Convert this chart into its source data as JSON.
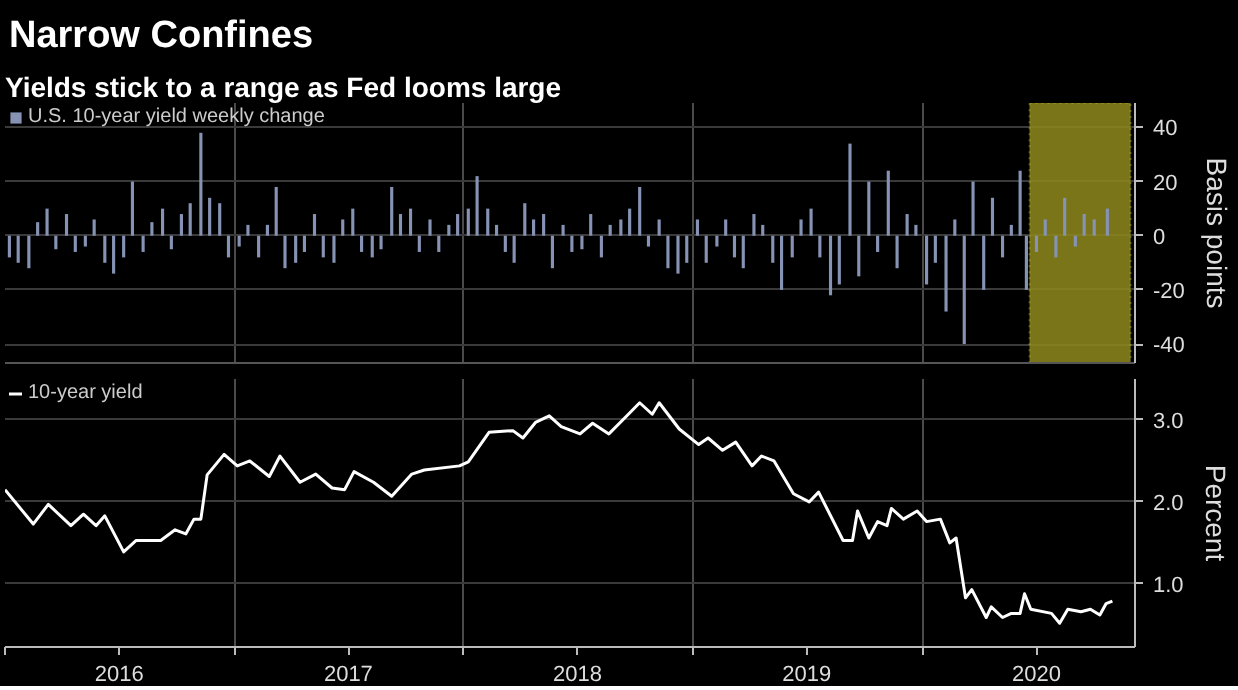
{
  "chart_data": [
    {
      "type": "bar",
      "title": "Narrow Confines",
      "subtitle": "Yields stick to a range as Fed looms large",
      "ylabel": "Basis points",
      "legend": "top left",
      "grid": true,
      "tick_labels": "y",
      "xlim": [
        "2016-01-01",
        "2020-12-05"
      ],
      "xticks": [
        {
          "value": "2017-01-01",
          "label": null
        },
        {
          "value": "2018-01-01",
          "label": null
        },
        {
          "value": "2019-01-01",
          "label": null
        },
        {
          "value": "2020-01-01",
          "label": null
        }
      ],
      "ylim": [
        -47,
        49
      ],
      "yticks": [
        -40,
        -20,
        0,
        20,
        40
      ],
      "bands": [
        {
          "axis": "x",
          "from": "2020-06-20",
          "to": "2020-11-28",
          "color": "#8f8a1c"
        }
      ],
      "x": [
        "2016-01-08",
        "2016-01-22",
        "2016-02-08",
        "2016-02-22",
        "2016-03-08",
        "2016-03-22",
        "2016-04-08",
        "2016-04-22",
        "2016-05-08",
        "2016-05-22",
        "2016-06-08",
        "2016-06-22",
        "2016-07-08",
        "2016-07-22",
        "2016-08-08",
        "2016-08-22",
        "2016-09-08",
        "2016-09-22",
        "2016-10-08",
        "2016-10-22",
        "2016-11-08",
        "2016-11-22",
        "2016-12-08",
        "2016-12-22",
        "2017-01-08",
        "2017-01-22",
        "2017-02-08",
        "2017-02-22",
        "2017-03-08",
        "2017-03-22",
        "2017-04-08",
        "2017-04-22",
        "2017-05-08",
        "2017-05-22",
        "2017-06-08",
        "2017-06-22",
        "2017-07-08",
        "2017-07-22",
        "2017-08-08",
        "2017-08-22",
        "2017-09-08",
        "2017-09-22",
        "2017-10-08",
        "2017-10-22",
        "2017-11-08",
        "2017-11-22",
        "2017-12-08",
        "2017-12-22",
        "2018-01-08",
        "2018-01-22",
        "2018-02-08",
        "2018-02-22",
        "2018-03-08",
        "2018-03-22",
        "2018-04-08",
        "2018-04-22",
        "2018-05-08",
        "2018-05-22",
        "2018-06-08",
        "2018-06-22",
        "2018-07-08",
        "2018-07-22",
        "2018-08-08",
        "2018-08-22",
        "2018-09-08",
        "2018-09-22",
        "2018-10-08",
        "2018-10-22",
        "2018-11-08",
        "2018-11-22",
        "2018-12-08",
        "2018-12-22",
        "2019-01-08",
        "2019-01-22",
        "2019-02-08",
        "2019-02-22",
        "2019-03-08",
        "2019-03-22",
        "2019-04-08",
        "2019-04-22",
        "2019-05-08",
        "2019-05-22",
        "2019-06-08",
        "2019-06-22",
        "2019-07-08",
        "2019-07-22",
        "2019-08-08",
        "2019-08-22",
        "2019-09-08",
        "2019-09-22",
        "2019-10-08",
        "2019-10-22",
        "2019-11-08",
        "2019-11-22",
        "2019-12-08",
        "2019-12-22",
        "2020-01-08",
        "2020-01-22",
        "2020-02-08",
        "2020-02-22",
        "2020-03-08",
        "2020-03-22",
        "2020-04-08",
        "2020-04-22",
        "2020-05-08",
        "2020-05-22",
        "2020-06-05",
        "2020-06-15",
        "2020-07-01",
        "2020-07-15",
        "2020-08-01",
        "2020-08-15",
        "2020-09-01",
        "2020-09-15",
        "2020-10-01",
        "2020-10-22"
      ],
      "series": [
        {
          "name": "U.S. 10-year yield weekly change",
          "color": "#8793b5",
          "values": [
            -8,
            -10,
            -12,
            5,
            10,
            -5,
            8,
            -6,
            -4,
            6,
            -10,
            -14,
            -8,
            20,
            -6,
            5,
            10,
            -5,
            8,
            12,
            38,
            14,
            12,
            -8,
            -4,
            4,
            -8,
            4,
            18,
            -12,
            -10,
            -6,
            8,
            -8,
            -10,
            6,
            10,
            -6,
            -8,
            -5,
            18,
            8,
            10,
            -6,
            6,
            -6,
            4,
            8,
            10,
            22,
            10,
            4,
            -6,
            -10,
            12,
            6,
            8,
            -12,
            4,
            -6,
            -5,
            8,
            -8,
            4,
            6,
            10,
            18,
            -4,
            6,
            -12,
            -14,
            -10,
            6,
            -10,
            -4,
            6,
            -8,
            -12,
            8,
            4,
            -10,
            -20,
            -8,
            6,
            10,
            -8,
            -22,
            -18,
            34,
            -15,
            20,
            -6,
            24,
            -12,
            8,
            4,
            -18,
            -10,
            -28,
            6,
            -40,
            20,
            -20,
            14,
            -8,
            4,
            24,
            -20,
            -6,
            6,
            -8,
            14,
            -4,
            8,
            6,
            10
          ]
        }
      ]
    },
    {
      "type": "line",
      "ylabel": "Percent",
      "legend": "top left",
      "grid": true,
      "xlim": [
        "2016-01-01",
        "2020-12-05"
      ],
      "xticks": [
        {
          "value": "2016-01-01",
          "label": null
        },
        {
          "value": "2016-07-01",
          "label": "2016"
        },
        {
          "value": "2017-01-01",
          "label": null
        },
        {
          "value": "2017-07-01",
          "label": "2017"
        },
        {
          "value": "2018-01-01",
          "label": null
        },
        {
          "value": "2018-07-01",
          "label": "2018"
        },
        {
          "value": "2019-01-01",
          "label": null
        },
        {
          "value": "2019-07-01",
          "label": "2019"
        },
        {
          "value": "2020-01-01",
          "label": null
        },
        {
          "value": "2020-07-01",
          "label": "2020"
        }
      ],
      "ylim": [
        0.23,
        3.5
      ],
      "yticks": [
        {
          "value": 1,
          "label": "1.0"
        },
        {
          "value": 2,
          "label": "2.0"
        },
        {
          "value": 3,
          "label": "3.0"
        }
      ],
      "x": [
        "2016-01-01",
        "2016-02-15",
        "2016-03-10",
        "2016-04-15",
        "2016-05-05",
        "2016-05-25",
        "2016-06-08",
        "2016-07-08",
        "2016-07-28",
        "2016-09-05",
        "2016-09-28",
        "2016-10-15",
        "2016-10-28",
        "2016-11-08",
        "2016-11-18",
        "2016-12-15",
        "2017-01-05",
        "2017-01-25",
        "2017-02-25",
        "2017-03-14",
        "2017-04-15",
        "2017-05-10",
        "2017-06-05",
        "2017-06-25",
        "2017-07-10",
        "2017-08-10",
        "2017-09-08",
        "2017-10-10",
        "2017-10-30",
        "2017-12-25",
        "2018-01-08",
        "2018-02-10",
        "2018-03-20",
        "2018-04-05",
        "2018-04-25",
        "2018-05-17",
        "2018-06-05",
        "2018-07-05",
        "2018-07-25",
        "2018-08-20",
        "2018-09-20",
        "2018-10-08",
        "2018-10-28",
        "2018-11-08",
        "2018-12-10",
        "2019-01-10",
        "2019-01-25",
        "2019-02-17",
        "2019-03-10",
        "2019-04-05",
        "2019-04-20",
        "2019-05-10",
        "2019-06-10",
        "2019-07-05",
        "2019-07-20",
        "2019-08-28",
        "2019-09-12",
        "2019-09-20",
        "2019-10-08",
        "2019-10-22",
        "2019-11-06",
        "2019-11-13",
        "2019-12-02",
        "2019-12-24",
        "2020-01-08",
        "2020-01-30",
        "2020-02-14",
        "2020-02-24",
        "2020-03-10",
        "2020-03-20",
        "2020-04-12",
        "2020-04-20",
        "2020-05-08",
        "2020-05-22",
        "2020-06-05",
        "2020-06-12",
        "2020-06-22",
        "2020-07-25",
        "2020-08-07",
        "2020-08-20",
        "2020-09-10",
        "2020-09-25",
        "2020-10-10",
        "2020-10-20",
        "2020-10-30"
      ],
      "series": [
        {
          "name": "10-year yield",
          "color": "#ffffff",
          "values": [
            2.15,
            1.73,
            1.97,
            1.71,
            1.85,
            1.71,
            1.83,
            1.39,
            1.53,
            1.53,
            1.66,
            1.61,
            1.79,
            1.79,
            2.33,
            2.58,
            2.44,
            2.5,
            2.31,
            2.56,
            2.24,
            2.34,
            2.17,
            2.15,
            2.37,
            2.24,
            2.07,
            2.34,
            2.39,
            2.44,
            2.49,
            2.85,
            2.87,
            2.78,
            2.97,
            3.05,
            2.92,
            2.83,
            2.96,
            2.83,
            3.07,
            3.21,
            3.07,
            3.21,
            2.89,
            2.7,
            2.78,
            2.63,
            2.73,
            2.44,
            2.56,
            2.5,
            2.1,
            2.0,
            2.12,
            1.53,
            1.53,
            1.89,
            1.56,
            1.76,
            1.71,
            1.92,
            1.79,
            1.89,
            1.76,
            1.79,
            1.5,
            1.56,
            0.83,
            0.93,
            0.59,
            0.72,
            0.59,
            0.64,
            0.64,
            0.88,
            0.69,
            0.64,
            0.52,
            0.69,
            0.66,
            0.69,
            0.62,
            0.76,
            0.79
          ]
        }
      ]
    }
  ]
}
